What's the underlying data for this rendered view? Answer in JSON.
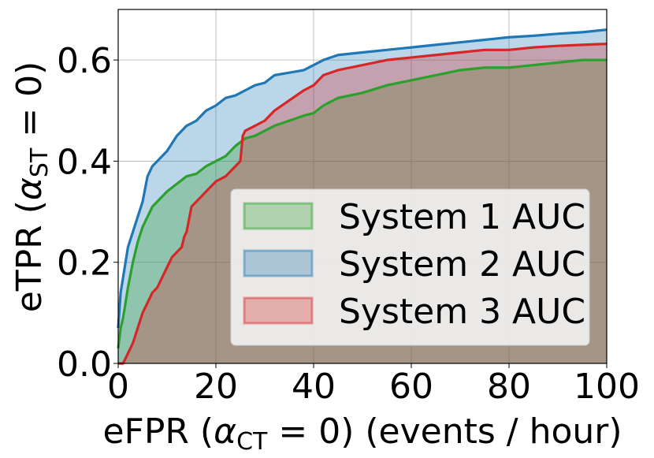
{
  "chart_data": {
    "type": "area",
    "xlabel": "eFPR (α_CT = 0) (events / hour)",
    "ylabel": "eTPR (α_ST = 0)",
    "xlim": [
      0,
      100
    ],
    "ylim": [
      0,
      0.7
    ],
    "xticks": [
      "0",
      "20",
      "40",
      "60",
      "80",
      "100"
    ],
    "yticks": [
      "0.0",
      "0.2",
      "0.4",
      "0.6"
    ],
    "grid": true,
    "legend_position": "lower-right",
    "series": [
      {
        "name": "System 1 AUC",
        "color": "#2ca02c",
        "fill": "#2ca02c",
        "x": [
          0,
          0.5,
          1,
          1.5,
          2,
          3,
          4,
          5,
          6,
          7,
          8,
          9,
          10,
          12,
          14,
          16,
          18,
          20,
          22,
          24,
          26,
          28,
          30,
          32,
          35,
          38,
          40,
          42,
          45,
          50,
          55,
          60,
          65,
          70,
          75,
          80,
          85,
          90,
          95,
          100
        ],
        "y": [
          0.03,
          0.07,
          0.09,
          0.12,
          0.15,
          0.2,
          0.24,
          0.27,
          0.29,
          0.31,
          0.32,
          0.33,
          0.34,
          0.355,
          0.37,
          0.375,
          0.39,
          0.4,
          0.41,
          0.43,
          0.445,
          0.45,
          0.46,
          0.47,
          0.48,
          0.49,
          0.495,
          0.51,
          0.525,
          0.535,
          0.55,
          0.56,
          0.57,
          0.58,
          0.585,
          0.585,
          0.59,
          0.595,
          0.6,
          0.6
        ]
      },
      {
        "name": "System 2 AUC",
        "color": "#1f77b4",
        "fill": "#1f77b4",
        "x": [
          0,
          0.5,
          1,
          1.5,
          2,
          3,
          4,
          5,
          6,
          7,
          8,
          9,
          10,
          12,
          14,
          16,
          18,
          20,
          22,
          24,
          26,
          28,
          30,
          32,
          35,
          38,
          40,
          42,
          45,
          50,
          55,
          60,
          65,
          70,
          75,
          80,
          85,
          90,
          95,
          100
        ],
        "y": [
          0.07,
          0.14,
          0.17,
          0.2,
          0.23,
          0.26,
          0.29,
          0.32,
          0.37,
          0.39,
          0.4,
          0.41,
          0.42,
          0.45,
          0.47,
          0.48,
          0.5,
          0.51,
          0.525,
          0.53,
          0.54,
          0.55,
          0.555,
          0.57,
          0.575,
          0.58,
          0.59,
          0.6,
          0.61,
          0.615,
          0.62,
          0.625,
          0.63,
          0.635,
          0.64,
          0.645,
          0.648,
          0.652,
          0.655,
          0.66
        ]
      },
      {
        "name": "System 3 AUC",
        "color": "#d62728",
        "fill": "#d62728",
        "x": [
          0,
          0.5,
          1,
          1.5,
          2,
          3,
          4,
          5,
          6,
          7,
          8,
          9,
          10,
          11,
          12,
          13,
          13.5,
          14,
          15,
          16,
          18,
          20,
          22,
          24,
          25,
          25.5,
          26,
          28,
          30,
          32,
          35,
          38,
          40,
          42,
          45,
          50,
          55,
          60,
          65,
          70,
          75,
          80,
          85,
          90,
          95,
          100
        ],
        "y": [
          0.0,
          0.0,
          0.0,
          0.01,
          0.02,
          0.04,
          0.07,
          0.1,
          0.12,
          0.14,
          0.15,
          0.17,
          0.19,
          0.21,
          0.22,
          0.23,
          0.25,
          0.26,
          0.31,
          0.32,
          0.34,
          0.36,
          0.37,
          0.39,
          0.4,
          0.45,
          0.46,
          0.47,
          0.48,
          0.5,
          0.52,
          0.54,
          0.55,
          0.57,
          0.58,
          0.59,
          0.6,
          0.605,
          0.61,
          0.615,
          0.62,
          0.62,
          0.625,
          0.628,
          0.63,
          0.632
        ]
      }
    ]
  }
}
